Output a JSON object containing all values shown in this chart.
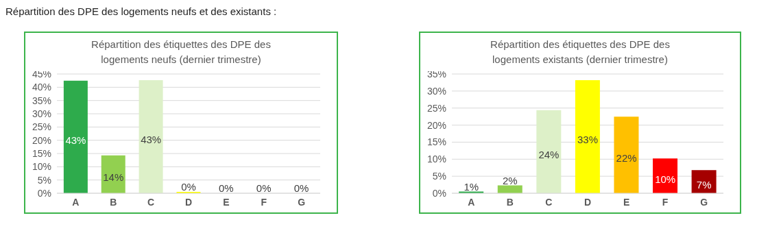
{
  "chart_data": [
    {
      "type": "bar",
      "title": "Répartition des étiquettes des DPE des logements neufs (dernier trimestre)",
      "annotations": [
        "Répartition des DPE des logements neufs et des existants :"
      ],
      "categories": [
        "A",
        "B",
        "C",
        "D",
        "E",
        "F",
        "G"
      ],
      "values": [
        42.5,
        14.3,
        42.7,
        0.5,
        0,
        0,
        0
      ],
      "colors": [
        "#2eab4c",
        "#92d050",
        "#ddf0c8",
        "#ffff00",
        "#ffc000",
        "#ff0000",
        "#a50000"
      ],
      "value_labels": [
        "43%",
        "14%",
        "43%",
        "0%",
        "0%",
        "0%",
        "0%"
      ],
      "ylim": [
        0,
        45
      ],
      "yticks": [
        {
          "value": 0,
          "label": "0%"
        },
        {
          "value": 5,
          "label": "5%"
        },
        {
          "value": 10,
          "label": "10%"
        },
        {
          "value": 15,
          "label": "15%"
        },
        {
          "value": 20,
          "label": "20%"
        },
        {
          "value": 25,
          "label": "25%"
        },
        {
          "value": 30,
          "label": "30%"
        },
        {
          "value": 35,
          "label": "35%"
        },
        {
          "value": 40,
          "label": "40%"
        },
        {
          "value": 45,
          "label": "45%"
        }
      ],
      "grid": "y"
    },
    {
      "type": "bar",
      "title": "Répartition des étiquettes des DPE des logements existants (dernier trimestre)",
      "categories": [
        "A",
        "B",
        "C",
        "D",
        "E",
        "F",
        "G"
      ],
      "values": [
        0.5,
        2.3,
        24.4,
        33.2,
        22.5,
        10.2,
        6.8
      ],
      "colors": [
        "#2eab4c",
        "#92d050",
        "#ddf0c8",
        "#ffff00",
        "#ffc000",
        "#ff0000",
        "#a50000"
      ],
      "value_labels": [
        "1%",
        "2%",
        "24%",
        "33%",
        "22%",
        "10%",
        "7%"
      ],
      "ylim": [
        0,
        35
      ],
      "yticks": [
        {
          "value": 0,
          "label": "0%"
        },
        {
          "value": 5,
          "label": "5%"
        },
        {
          "value": 10,
          "label": "10%"
        },
        {
          "value": 15,
          "label": "15%"
        },
        {
          "value": 20,
          "label": "20%"
        },
        {
          "value": 25,
          "label": "25%"
        },
        {
          "value": 30,
          "label": "30%"
        },
        {
          "value": 35,
          "label": "35%"
        }
      ],
      "grid": "y"
    }
  ]
}
